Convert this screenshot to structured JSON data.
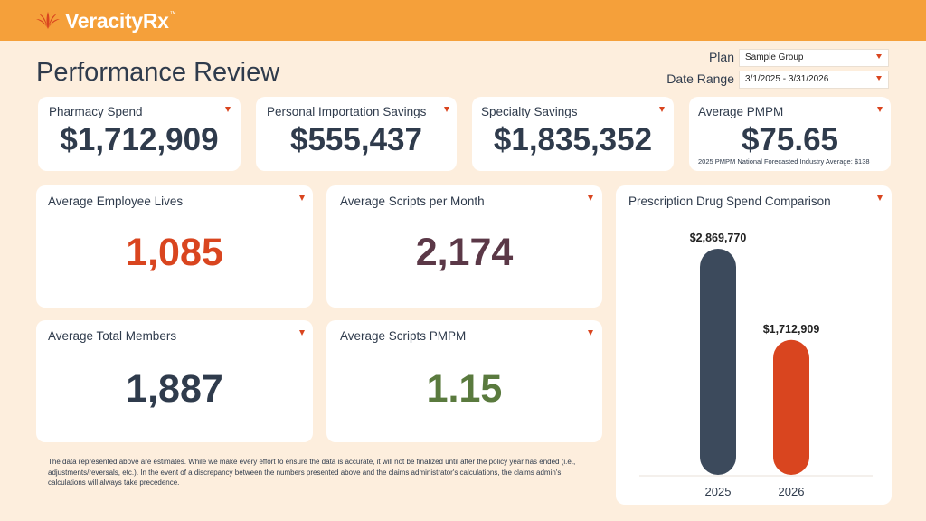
{
  "brand": {
    "name": "VeracityRx",
    "tm": "™"
  },
  "page": {
    "title": "Performance Review"
  },
  "filters": {
    "plan": {
      "label": "Plan",
      "value": "Sample Group"
    },
    "date_range": {
      "label": "Date Range",
      "value": "3/1/2025 - 3/31/2026"
    }
  },
  "kpis": {
    "pharmacy_spend": {
      "label": "Pharmacy Spend",
      "value": "$1,712,909"
    },
    "importation_savings": {
      "label": "Personal Importation Savings",
      "value": "$555,437"
    },
    "specialty_savings": {
      "label": "Specialty Savings",
      "value": "$1,835,352"
    },
    "avg_pmpm": {
      "label": "Average PMPM",
      "value": "$75.65",
      "note": "2025 PMPM National Forecasted Industry Average: $138"
    },
    "employee_lives": {
      "label": "Average Employee Lives",
      "value": "1,085"
    },
    "scripts_per_month": {
      "label": "Average Scripts per Month",
      "value": "2,174"
    },
    "total_members": {
      "label": "Average Total Members",
      "value": "1,887"
    },
    "scripts_pmpm": {
      "label": "Average Scripts PMPM",
      "value": "1.15"
    }
  },
  "colors": {
    "accent": "#f5a03a",
    "orange_red": "#d9451f",
    "navy": "#3c4a5c",
    "maroon": "#5b3847",
    "green": "#5a7a3e",
    "background": "#fdeedd"
  },
  "disclaimer": "The data represented above are estimates. While we make every effort to ensure the data is accurate, it will not be finalized until after the policy year has ended (i.e., adjustments/reversals, etc.). In the event of a discrepancy between the numbers presented above and the claims administrator's calculations, the claims admin's calculations will always take precedence.",
  "chart_data": {
    "type": "bar",
    "title": "Prescription Drug Spend Comparison",
    "categories": [
      "2025",
      "2026"
    ],
    "values": [
      2869770,
      1712909
    ],
    "data_labels": [
      "$2,869,770",
      "$1,712,909"
    ],
    "colors": [
      "#3c4a5c",
      "#d9451f"
    ],
    "xlabel": "",
    "ylabel": "",
    "grid": false
  }
}
